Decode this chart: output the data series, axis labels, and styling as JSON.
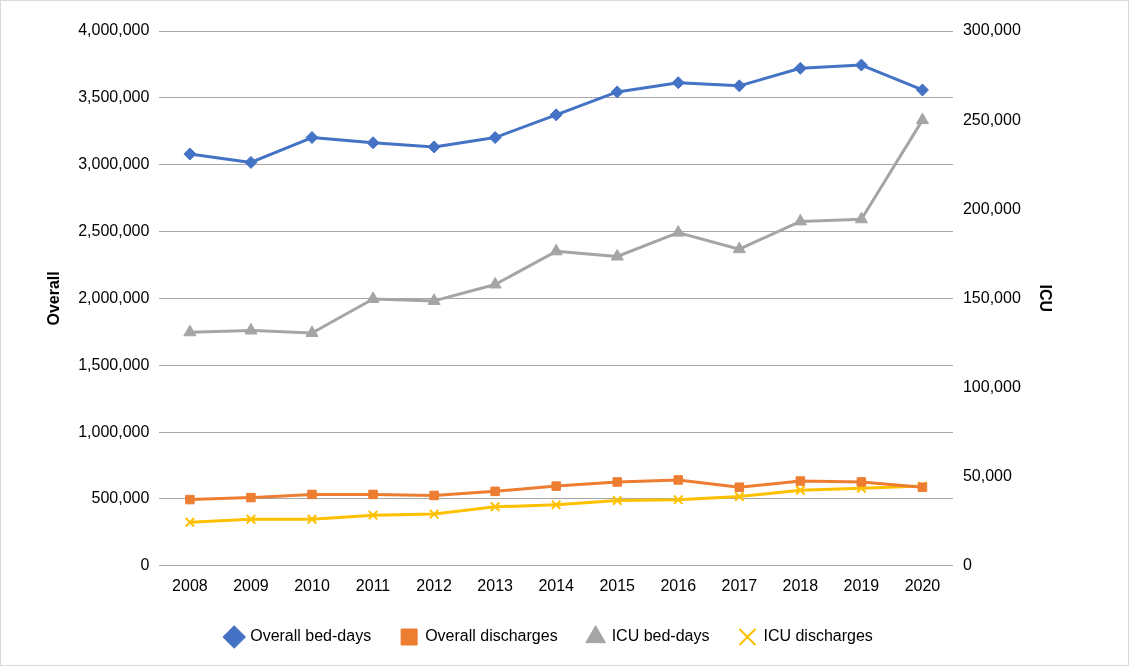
{
  "chart_data": {
    "type": "line",
    "ylabel": "Overall",
    "y2label": "ICU",
    "categories": [
      "2008",
      "2009",
      "2010",
      "2011",
      "2012",
      "2013",
      "2014",
      "2015",
      "2016",
      "2017",
      "2018",
      "2019",
      "2020"
    ],
    "series": [
      {
        "name": "Overall bed-days",
        "color": "#4472c4",
        "marker": "diamond",
        "values": [
          3080000,
          3017000,
          3203000,
          3164000,
          3133000,
          3203000,
          3373000,
          3544000,
          3613000,
          3590000,
          3721000,
          3745000,
          3559000
        ]
      },
      {
        "name": "Overall discharges",
        "color": "#ed7d31",
        "marker": "square",
        "values": [
          495000,
          510000,
          534000,
          534000,
          526000,
          557000,
          596000,
          627000,
          642000,
          588000,
          634000,
          627000,
          588000
        ]
      },
      {
        "name": "ICU bed-days",
        "color": "#a5a5a5",
        "marker": "triangle",
        "axis": "y2",
        "values": [
          131000,
          132000,
          130600,
          149700,
          148600,
          157800,
          176400,
          173500,
          186900,
          177600,
          193200,
          194400,
          250000
        ]
      },
      {
        "name": "ICU discharges",
        "color": "#ffc000",
        "marker": "cross",
        "axis": "y2",
        "values": [
          24400,
          26100,
          26100,
          28400,
          29000,
          33100,
          34200,
          36600,
          37100,
          38900,
          42400,
          43500,
          44700
        ]
      }
    ],
    "ylim": [
      0,
      4000000
    ],
    "yticks": [
      0,
      {
        "value": 500000,
        "label": "500,000"
      },
      {
        "value": 1000000,
        "label": "1,000,000"
      },
      {
        "value": 1500000,
        "label": "1,500,000"
      },
      {
        "value": 2000000,
        "label": "2,000,000"
      },
      {
        "value": 2500000,
        "label": "2,500,000"
      },
      {
        "value": 3000000,
        "label": "3,000,000"
      },
      {
        "value": 3500000,
        "label": "3,500,000"
      },
      {
        "value": 4000000,
        "label": "4,000,000"
      }
    ],
    "y2lim": [
      0,
      300000
    ],
    "y2ticks": [
      0,
      {
        "value": 50000,
        "label": "50,000"
      },
      {
        "value": 100000,
        "label": "100,000"
      },
      {
        "value": 150000,
        "label": "150,000"
      },
      {
        "value": 200000,
        "label": "200,000"
      },
      {
        "value": 250000,
        "label": "250,000"
      },
      {
        "value": 300000,
        "label": "300,000"
      }
    ],
    "grid": "y",
    "legend": "bottom",
    "line_style": "solid"
  }
}
